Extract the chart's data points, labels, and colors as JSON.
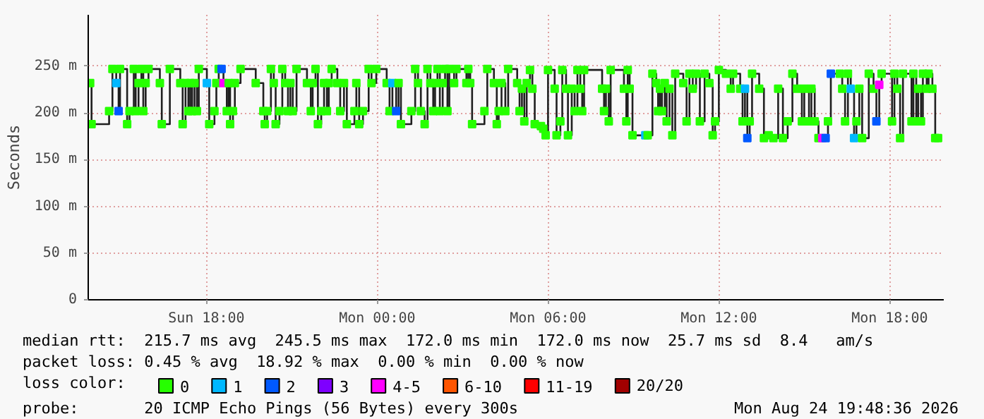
{
  "chart_data": {
    "type": "step",
    "ylabel": "Seconds",
    "legend_title": "loss color:",
    "legend": "bottom",
    "grid": true,
    "marker": "square",
    "xlim": [
      "2026-08-23T13:51",
      "2026-08-24T19:54"
    ],
    "xticks": [
      {
        "value": "2026-08-23T18:00",
        "label": "Sun 18:00"
      },
      {
        "value": "2026-08-24T00:00",
        "label": "Mon 00:00"
      },
      {
        "value": "2026-08-24T06:00",
        "label": "Mon 06:00"
      },
      {
        "value": "2026-08-24T12:00",
        "label": "Mon 12:00"
      },
      {
        "value": "2026-08-24T18:00",
        "label": "Mon 18:00"
      }
    ],
    "ylim": [
      0,
      305
    ],
    "yticks": [
      0,
      {
        "value": 50,
        "label": "50 m"
      },
      {
        "value": 100,
        "label": "100 m"
      },
      {
        "value": 150,
        "label": "150 m"
      },
      {
        "value": 200,
        "label": "200 m"
      },
      {
        "value": 250,
        "label": "250 m"
      }
    ],
    "annotations": [
      "median rtt:  215.7 ms avg  245.5 ms max  172.0 ms min  172.0 ms now  25.7 ms sd  8.4   am/s",
      "packet loss: 0.45 % avg  18.92 % max  0.00 % min  0.00 % now",
      "probe:       20 ICMP Echo Pings (56 Bytes) every 300s",
      "Mon Aug 24 19:48:36 2026"
    ],
    "series": [
      {
        "color": "#202020",
        "x": [
          "2026-08-23T13:55",
          "2026-08-23T13:58",
          "2026-08-23T14:35",
          "2026-08-23T14:42",
          "2026-08-23T14:50",
          "2026-08-23T14:55",
          "2026-08-23T14:58",
          "2026-08-23T15:13",
          "2026-08-23T15:18",
          "2026-08-23T15:27",
          "2026-08-23T15:31",
          "2026-08-23T15:37",
          "2026-08-23T15:43",
          "2026-08-23T15:47",
          "2026-08-23T15:52",
          "2026-08-23T15:58",
          "2026-08-23T16:22",
          "2026-08-23T16:26",
          "2026-08-23T16:43",
          "2026-08-23T17:05",
          "2026-08-23T17:10",
          "2026-08-23T17:16",
          "2026-08-23T17:22",
          "2026-08-23T17:26",
          "2026-08-23T17:30",
          "2026-08-23T17:35",
          "2026-08-23T17:40",
          "2026-08-23T17:44",
          "2026-08-23T18:01",
          "2026-08-23T18:06",
          "2026-08-23T18:17",
          "2026-08-23T18:21",
          "2026-08-23T18:26",
          "2026-08-23T18:32",
          "2026-08-23T18:36",
          "2026-08-23T18:43",
          "2026-08-23T18:47",
          "2026-08-23T18:50",
          "2026-08-23T18:56",
          "2026-08-23T19:00",
          "2026-08-23T19:12",
          "2026-08-23T19:44",
          "2026-08-23T20:00",
          "2026-08-23T20:03",
          "2026-08-23T20:08",
          "2026-08-23T20:16",
          "2026-08-23T20:22",
          "2026-08-23T20:26",
          "2026-08-23T20:34",
          "2026-08-23T20:40",
          "2026-08-23T20:46",
          "2026-08-23T20:52",
          "2026-08-23T20:57",
          "2026-08-23T21:02",
          "2026-08-23T21:10",
          "2026-08-23T21:32",
          "2026-08-23T21:40",
          "2026-08-23T21:44",
          "2026-08-23T21:50",
          "2026-08-23T21:55",
          "2026-08-23T22:02",
          "2026-08-23T22:08",
          "2026-08-23T22:14",
          "2026-08-23T22:18",
          "2026-08-23T22:24",
          "2026-08-23T22:36",
          "2026-08-23T22:42",
          "2026-08-23T22:50",
          "2026-08-23T22:56",
          "2026-08-23T23:12",
          "2026-08-23T23:16",
          "2026-08-23T23:22",
          "2026-08-23T23:30",
          "2026-08-23T23:42",
          "2026-08-23T23:48",
          "2026-08-23T23:58",
          "2026-08-24T00:20",
          "2026-08-24T00:26",
          "2026-08-24T00:32",
          "2026-08-24T00:40",
          "2026-08-24T00:45",
          "2026-08-24T00:50",
          "2026-08-24T01:12",
          "2026-08-24T01:20",
          "2026-08-24T01:26",
          "2026-08-24T01:32",
          "2026-08-24T01:40",
          "2026-08-24T01:46",
          "2026-08-24T01:52",
          "2026-08-24T01:58",
          "2026-08-24T02:02",
          "2026-08-24T02:07",
          "2026-08-24T02:12",
          "2026-08-24T02:18",
          "2026-08-24T02:23",
          "2026-08-24T02:28",
          "2026-08-24T02:32",
          "2026-08-24T02:42",
          "2026-08-24T02:47",
          "2026-08-24T03:08",
          "2026-08-24T03:12",
          "2026-08-24T03:16",
          "2026-08-24T03:20",
          "2026-08-24T03:46",
          "2026-08-24T03:52",
          "2026-08-24T04:06",
          "2026-08-24T04:12",
          "2026-08-24T04:16",
          "2026-08-24T04:22",
          "2026-08-24T04:30",
          "2026-08-24T04:36",
          "2026-08-24T04:55",
          "2026-08-24T05:00",
          "2026-08-24T05:05",
          "2026-08-24T05:10",
          "2026-08-24T05:15",
          "2026-08-24T05:22",
          "2026-08-24T05:27",
          "2026-08-24T05:32",
          "2026-08-24T05:45",
          "2026-08-24T05:50",
          "2026-08-24T05:55",
          "2026-08-24T06:00",
          "2026-08-24T06:14",
          "2026-08-24T06:18",
          "2026-08-24T06:26",
          "2026-08-24T06:30",
          "2026-08-24T06:38",
          "2026-08-24T06:42",
          "2026-08-24T06:50",
          "2026-08-24T06:56",
          "2026-08-24T07:02",
          "2026-08-24T07:08",
          "2026-08-24T07:12",
          "2026-08-24T07:16",
          "2026-08-24T07:54",
          "2026-08-24T07:58",
          "2026-08-24T08:02",
          "2026-08-24T08:08",
          "2026-08-24T08:12",
          "2026-08-24T08:40",
          "2026-08-24T08:45",
          "2026-08-24T08:48",
          "2026-08-24T08:52",
          "2026-08-24T08:58",
          "2026-08-24T09:25",
          "2026-08-24T09:30",
          "2026-08-24T09:40",
          "2026-08-24T09:48",
          "2026-08-24T09:52",
          "2026-08-24T09:56",
          "2026-08-24T10:00",
          "2026-08-24T10:06",
          "2026-08-24T10:10",
          "2026-08-24T10:16",
          "2026-08-24T10:22",
          "2026-08-24T10:28",
          "2026-08-24T10:45",
          "2026-08-24T10:52",
          "2026-08-24T10:58",
          "2026-08-24T11:05",
          "2026-08-24T11:12",
          "2026-08-24T11:20",
          "2026-08-24T11:30",
          "2026-08-24T11:40",
          "2026-08-24T11:47",
          "2026-08-24T11:52",
          "2026-08-24T12:00",
          "2026-08-24T12:15",
          "2026-08-24T12:25",
          "2026-08-24T12:30",
          "2026-08-24T12:45",
          "2026-08-24T12:50",
          "2026-08-24T12:55",
          "2026-08-24T13:00",
          "2026-08-24T13:05",
          "2026-08-24T13:10",
          "2026-08-24T13:25",
          "2026-08-24T13:35",
          "2026-08-24T13:45",
          "2026-08-24T13:55",
          "2026-08-24T14:05",
          "2026-08-24T14:15",
          "2026-08-24T14:25",
          "2026-08-24T14:35",
          "2026-08-24T14:45",
          "2026-08-24T14:55",
          "2026-08-24T15:00",
          "2026-08-24T15:10",
          "2026-08-24T15:15",
          "2026-08-24T15:22",
          "2026-08-24T15:30",
          "2026-08-24T15:38",
          "2026-08-24T15:45",
          "2026-08-24T15:50",
          "2026-08-24T15:56",
          "2026-08-24T16:15",
          "2026-08-24T16:20",
          "2026-08-24T16:26",
          "2026-08-24T16:32",
          "2026-08-24T16:38",
          "2026-08-24T16:45",
          "2026-08-24T16:50",
          "2026-08-24T16:56",
          "2026-08-24T17:02",
          "2026-08-24T17:16",
          "2026-08-24T17:26",
          "2026-08-24T17:32",
          "2026-08-24T17:38",
          "2026-08-24T17:43",
          "2026-08-24T18:05",
          "2026-08-24T18:10",
          "2026-08-24T18:16",
          "2026-08-24T18:22",
          "2026-08-24T18:28",
          "2026-08-24T18:46",
          "2026-08-24T18:50",
          "2026-08-24T18:56",
          "2026-08-24T19:00",
          "2026-08-24T19:06",
          "2026-08-24T19:10",
          "2026-08-24T19:18",
          "2026-08-24T19:22",
          "2026-08-24T19:30",
          "2026-08-24T19:36",
          "2026-08-24T19:42"
        ],
        "values": [
          232,
          188,
          202,
          247,
          232,
          202,
          247,
          188,
          202,
          247,
          202,
          232,
          247,
          202,
          232,
          247,
          232,
          188,
          247,
          232,
          188,
          232,
          202,
          232,
          202,
          232,
          202,
          247,
          232,
          188,
          202,
          232,
          247,
          247,
          232,
          202,
          232,
          188,
          202,
          232,
          247,
          232,
          202,
          188,
          202,
          247,
          232,
          188,
          202,
          247,
          232,
          202,
          232,
          202,
          247,
          232,
          202,
          232,
          247,
          188,
          202,
          232,
          202,
          232,
          247,
          232,
          202,
          232,
          188,
          202,
          232,
          188,
          202,
          247,
          232,
          247,
          232,
          202,
          232,
          202,
          232,
          188,
          202,
          247,
          232,
          202,
          188,
          247,
          232,
          202,
          232,
          247,
          202,
          232,
          247,
          202,
          247,
          232,
          247,
          232,
          247,
          232,
          188,
          202,
          247,
          232,
          188,
          202,
          232,
          202,
          247,
          232,
          202,
          226,
          191,
          232,
          246,
          226,
          188,
          186,
          183,
          176,
          246,
          226,
          176,
          191,
          246,
          226,
          176,
          226,
          202,
          246,
          226,
          202,
          246,
          226,
          202,
          226,
          191,
          246,
          226,
          191,
          246,
          226,
          176,
          176,
          176,
          242,
          232,
          202,
          226,
          202,
          232,
          191,
          226,
          176,
          242,
          232,
          191,
          242,
          226,
          242,
          191,
          242,
          232,
          176,
          191,
          246,
          242,
          226,
          242,
          226,
          191,
          226,
          173,
          191,
          242,
          226,
          173,
          176,
          173,
          226,
          173,
          191,
          242,
          226,
          191,
          226,
          191,
          226,
          191,
          173,
          173,
          173,
          191,
          242,
          242,
          226,
          191,
          242,
          226,
          173,
          191,
          226,
          173,
          242,
          226,
          191,
          230,
          242,
          191,
          242,
          226,
          173,
          242,
          191,
          242,
          191,
          226,
          191,
          242,
          226,
          242,
          226,
          173,
          173
        ],
        "colors": [
          "#26ff00",
          "#26ff00",
          "#26ff00",
          "#26ff00",
          "#00b8ff",
          "#0059ff",
          "#26ff00",
          "#26ff00",
          "#26ff00",
          "#26ff00",
          "#26ff00",
          "#26ff00",
          "#26ff00",
          "#26ff00",
          "#26ff00",
          "#26ff00",
          "#26ff00",
          "#26ff00",
          "#26ff00",
          "#26ff00",
          "#26ff00",
          "#26ff00",
          "#26ff00",
          "#26ff00",
          "#26ff00",
          "#26ff00",
          "#26ff00",
          "#26ff00",
          "#00b8ff",
          "#26ff00",
          "#26ff00",
          "#26ff00",
          "#26ff00",
          "#0059ff",
          "#ff00ff",
          "#26ff00",
          "#26ff00",
          "#26ff00",
          "#26ff00",
          "#26ff00",
          "#26ff00",
          "#26ff00",
          "#26ff00",
          "#26ff00",
          "#26ff00",
          "#26ff00",
          "#26ff00",
          "#26ff00",
          "#26ff00",
          "#26ff00",
          "#26ff00",
          "#26ff00",
          "#26ff00",
          "#26ff00",
          "#26ff00",
          "#26ff00",
          "#26ff00",
          "#26ff00",
          "#26ff00",
          "#26ff00",
          "#26ff00",
          "#26ff00",
          "#26ff00",
          "#26ff00",
          "#26ff00",
          "#26ff00",
          "#26ff00",
          "#26ff00",
          "#26ff00",
          "#26ff00",
          "#26ff00",
          "#26ff00",
          "#26ff00",
          "#26ff00",
          "#26ff00",
          "#26ff00",
          "#26ff00",
          "#26ff00",
          "#00b8ff",
          "#0059ff",
          "#26ff00",
          "#26ff00",
          "#26ff00",
          "#26ff00",
          "#26ff00",
          "#26ff00",
          "#26ff00",
          "#26ff00",
          "#26ff00",
          "#26ff00",
          "#26ff00",
          "#26ff00",
          "#26ff00",
          "#26ff00",
          "#26ff00",
          "#26ff00",
          "#26ff00",
          "#26ff00",
          "#26ff00",
          "#26ff00",
          "#26ff00",
          "#26ff00",
          "#26ff00",
          "#26ff00",
          "#26ff00",
          "#26ff00",
          "#26ff00",
          "#26ff00",
          "#26ff00",
          "#26ff00",
          "#26ff00",
          "#26ff00",
          "#26ff00",
          "#26ff00",
          "#26ff00",
          "#26ff00",
          "#26ff00",
          "#26ff00",
          "#26ff00",
          "#26ff00",
          "#26ff00",
          "#26ff00",
          "#26ff00",
          "#26ff00",
          "#26ff00",
          "#26ff00",
          "#26ff00",
          "#26ff00",
          "#26ff00",
          "#26ff00",
          "#26ff00",
          "#26ff00",
          "#26ff00",
          "#26ff00",
          "#26ff00",
          "#26ff00",
          "#26ff00",
          "#26ff00",
          "#26ff00",
          "#26ff00",
          "#26ff00",
          "#26ff00",
          "#26ff00",
          "#26ff00",
          "#26ff00",
          "#00b8ff",
          "#26ff00",
          "#26ff00",
          "#26ff00",
          "#26ff00",
          "#26ff00",
          "#26ff00",
          "#26ff00",
          "#26ff00",
          "#26ff00",
          "#26ff00",
          "#26ff00",
          "#26ff00",
          "#26ff00",
          "#26ff00",
          "#26ff00",
          "#26ff00",
          "#26ff00",
          "#26ff00",
          "#26ff00",
          "#26ff00",
          "#26ff00",
          "#26ff00",
          "#26ff00",
          "#26ff00",
          "#26ff00",
          "#26ff00",
          "#26ff00",
          "#00b8ff",
          "#0059ff",
          "#26ff00",
          "#26ff00",
          "#26ff00",
          "#26ff00",
          "#26ff00",
          "#26ff00",
          "#26ff00",
          "#26ff00",
          "#26ff00",
          "#26ff00",
          "#26ff00",
          "#26ff00",
          "#26ff00",
          "#26ff00",
          "#26ff00",
          "#26ff00",
          "#26ff00",
          "#ff00ff",
          "#0059ff",
          "#26ff00",
          "#0059ff",
          "#26ff00",
          "#26ff00",
          "#26ff00",
          "#26ff00",
          "#00b8ff",
          "#00b8ff",
          "#26ff00",
          "#26ff00",
          "#26ff00",
          "#26ff00",
          "#26ff00",
          "#0059ff",
          "#ff00ff",
          "#26ff00",
          "#26ff00",
          "#26ff00",
          "#26ff00",
          "#26ff00",
          "#26ff00",
          "#26ff00",
          "#26ff00",
          "#26ff00",
          "#26ff00",
          "#26ff00",
          "#26ff00",
          "#26ff00",
          "#26ff00",
          "#26ff00",
          "#26ff00",
          "#26ff00"
        ]
      },
      {
        "type": "scatter",
        "name": "0",
        "color": "#26ff00"
      },
      {
        "type": "scatter",
        "name": "1",
        "color": "#00b8ff"
      },
      {
        "type": "scatter",
        "name": "2",
        "color": "#0059ff"
      },
      {
        "type": "scatter",
        "name": "3",
        "color": "#7e00ff"
      },
      {
        "type": "scatter",
        "name": "4-5",
        "color": "#ff00ff"
      },
      {
        "type": "scatter",
        "name": "6-10",
        "color": "#ff5500"
      },
      {
        "type": "scatter",
        "name": "11-19",
        "color": "#ff0000"
      },
      {
        "type": "scatter",
        "name": "20/20",
        "color": "#a10000"
      }
    ]
  }
}
